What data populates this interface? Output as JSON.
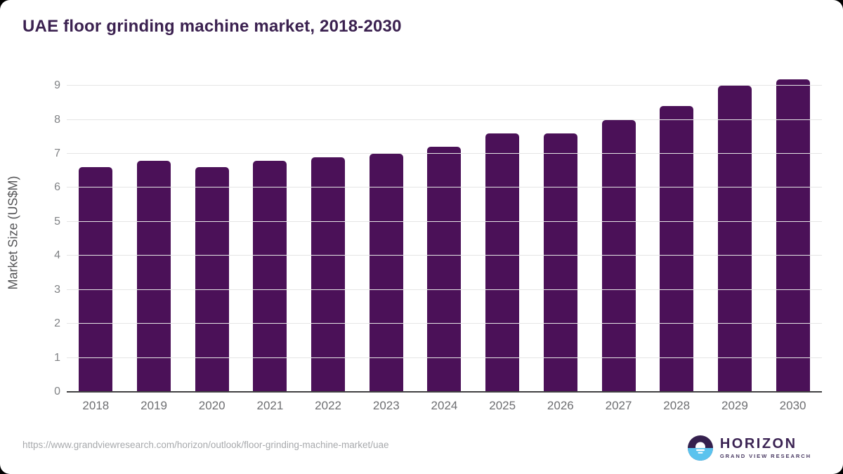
{
  "page": {
    "title": "UAE floor grinding machine market, 2018-2030",
    "source_url": "https://www.grandviewresearch.com/horizon/outlook/floor-grinding-machine-market/uae"
  },
  "branding": {
    "logo_icon": "horizon-sunrise-icon",
    "name": "HORIZON",
    "tagline": "GRAND VIEW RESEARCH"
  },
  "colors": {
    "bar": "#4b1158",
    "title_text": "#3b2150",
    "gridline": "#e5e5e5",
    "axis_line": "#414042",
    "y_tick_label": "#808285",
    "x_tick_label": "#6d6e71",
    "source_text": "#a7a9ac",
    "logo_purple": "#35204e",
    "logo_blue": "#5bc3ee"
  },
  "chart_data": {
    "type": "bar",
    "title": "UAE floor grinding machine market, 2018-2030",
    "categories": [
      "2018",
      "2019",
      "2020",
      "2021",
      "2022",
      "2023",
      "2024",
      "2025",
      "2026",
      "2027",
      "2028",
      "2029",
      "2030"
    ],
    "values": [
      6.6,
      6.8,
      6.6,
      6.8,
      6.9,
      7.0,
      7.2,
      7.6,
      7.6,
      8.0,
      8.4,
      9.0,
      9.2
    ],
    "xlabel": "",
    "ylabel": "Market Size (US$M)",
    "ylim": [
      0,
      9.5
    ],
    "yticks": [
      0,
      1,
      2,
      3,
      4,
      5,
      6,
      7,
      8,
      9
    ],
    "grid": "horizontal",
    "legend": "none",
    "bar_color": "#4b1158"
  }
}
